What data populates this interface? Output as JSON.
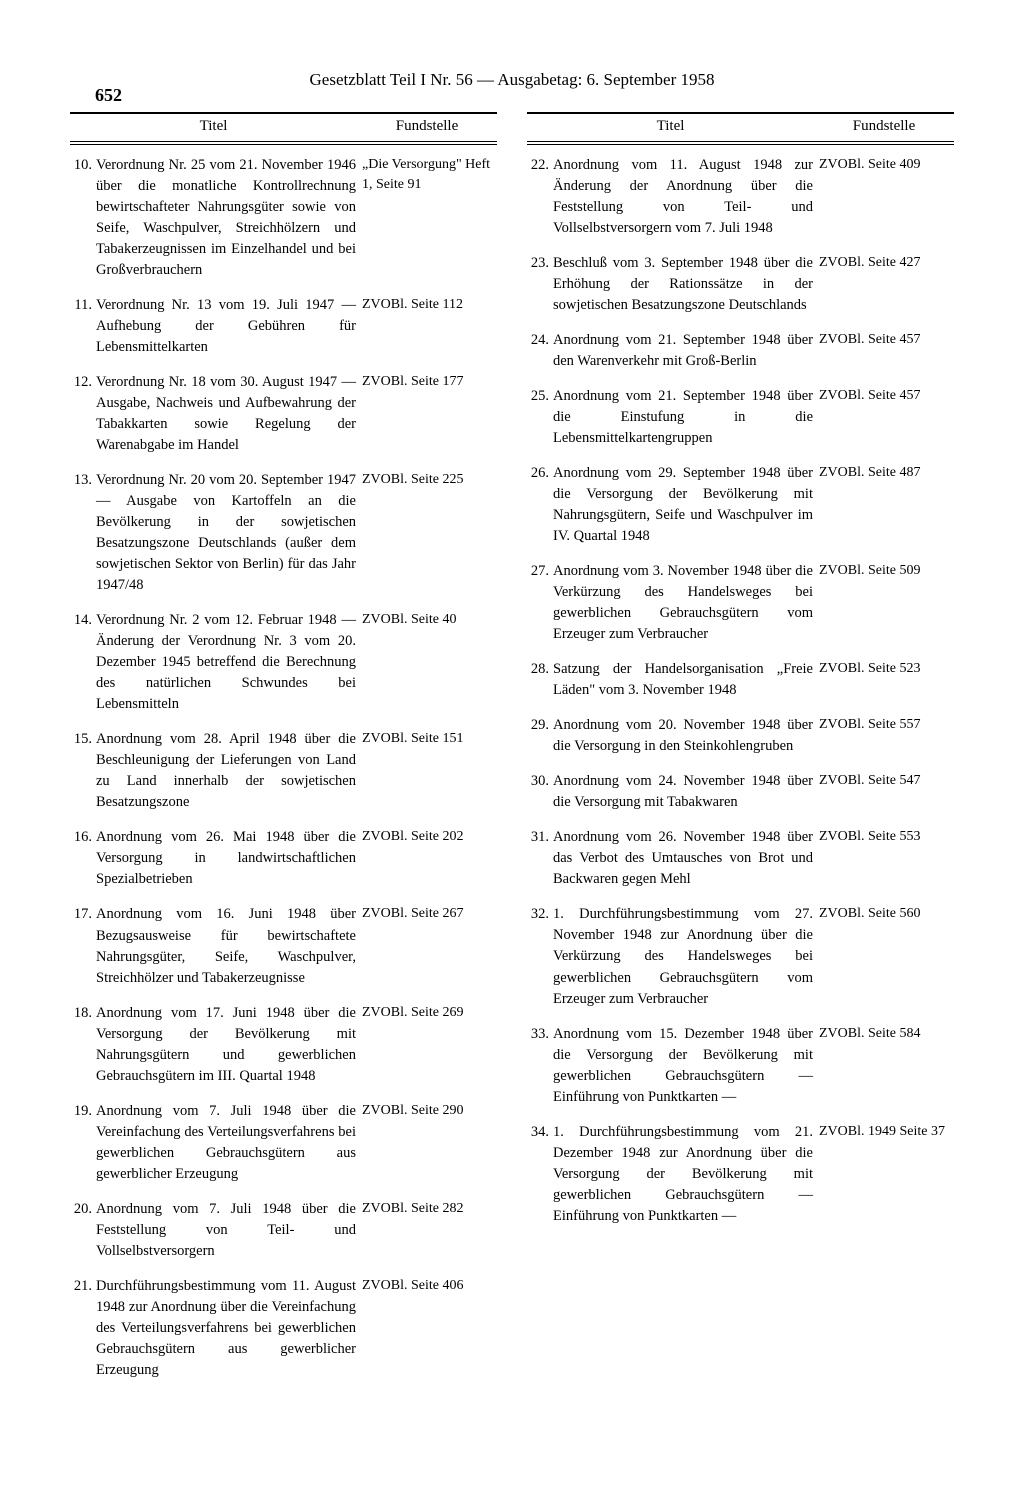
{
  "page_number": "652",
  "header": "Gesetzblatt Teil I Nr. 56 — Ausgabetag: 6. September 1958",
  "col_header_title": "Titel",
  "col_header_fund": "Fundstelle",
  "left": [
    {
      "n": "10.",
      "t": "Verordnung Nr. 25 vom 21. November 1946 über die monatliche Kontrollrechnung bewirtschafteter Nahrungsgüter sowie von Seife, Waschpulver, Streichhölzern und Tabakerzeugnissen im Einzelhandel und bei Großverbrauchern",
      "f": "„Die Versorgung\" Heft 1, Seite 91"
    },
    {
      "n": "11.",
      "t": "Verordnung Nr. 13 vom 19. Juli 1947 — Aufhebung der Gebühren für Lebensmittelkarten",
      "f": "ZVOBl. Seite 112"
    },
    {
      "n": "12.",
      "t": "Verordnung Nr. 18 vom 30. August 1947 — Ausgabe, Nachweis und Aufbewahrung der Tabakkarten sowie Regelung der Warenabgabe im Handel",
      "f": "ZVOBl. Seite 177"
    },
    {
      "n": "13.",
      "t": "Verordnung Nr. 20 vom 20. September 1947 — Ausgabe von Kartoffeln an die Bevölkerung in der sowjetischen Besatzungszone Deutschlands (außer dem sowjetischen Sektor von Berlin) für das Jahr 1947/48",
      "f": "ZVOBl. Seite 225"
    },
    {
      "n": "14.",
      "t": "Verordnung Nr. 2 vom 12. Februar 1948 — Änderung der Verordnung Nr. 3 vom 20. Dezember 1945 betreffend die Berechnung des natürlichen Schwundes bei Lebensmitteln",
      "f": "ZVOBl. Seite 40"
    },
    {
      "n": "15.",
      "t": "Anordnung vom 28. April 1948 über die Beschleunigung der Lieferungen von Land zu Land innerhalb der sowjetischen Besatzungszone",
      "f": "ZVOBl. Seite 151"
    },
    {
      "n": "16.",
      "t": "Anordnung vom 26. Mai 1948 über die Versorgung in landwirtschaftlichen Spezialbetrieben",
      "f": "ZVOBl. Seite 202"
    },
    {
      "n": "17.",
      "t": "Anordnung vom 16. Juni 1948 über Bezugsausweise für bewirtschaftete Nahrungsgüter, Seife, Waschpulver, Streichhölzer und Tabakerzeugnisse",
      "f": "ZVOBl. Seite 267"
    },
    {
      "n": "18.",
      "t": "Anordnung vom 17. Juni 1948 über die Versorgung der Bevölkerung mit Nahrungsgütern und gewerblichen Gebrauchsgütern im III. Quartal 1948",
      "f": "ZVOBl. Seite 269"
    },
    {
      "n": "19.",
      "t": "Anordnung vom 7. Juli 1948 über die Vereinfachung des Verteilungsverfahrens bei gewerblichen Gebrauchsgütern aus gewerblicher Erzeugung",
      "f": "ZVOBl. Seite 290"
    },
    {
      "n": "20.",
      "t": "Anordnung vom 7. Juli 1948 über die Feststellung von Teil- und Vollselbstversorgern",
      "f": "ZVOBl. Seite 282"
    },
    {
      "n": "21.",
      "t": "Durchführungsbestimmung vom 11. August 1948 zur Anordnung über die Vereinfachung des Verteilungsverfahrens bei gewerblichen Gebrauchsgütern aus gewerblicher Erzeugung",
      "f": "ZVOBl. Seite 406"
    }
  ],
  "right": [
    {
      "n": "22.",
      "t": "Anordnung vom 11. August 1948 zur Änderung der Anordnung über die Feststellung von Teil- und Vollselbstversorgern vom 7. Juli 1948",
      "f": "ZVOBl. Seite 409"
    },
    {
      "n": "23.",
      "t": "Beschluß vom 3. September 1948 über die Erhöhung der Rationssätze in der sowjetischen Besatzungszone Deutschlands",
      "f": "ZVOBl. Seite 427"
    },
    {
      "n": "24.",
      "t": "Anordnung vom 21. September 1948 über den Warenverkehr mit Groß-Berlin",
      "f": "ZVOBl. Seite 457"
    },
    {
      "n": "25.",
      "t": "Anordnung vom 21. September 1948 über die Einstufung in die Lebensmittelkartengruppen",
      "f": "ZVOBl. Seite 457"
    },
    {
      "n": "26.",
      "t": "Anordnung vom 29. September 1948 über die Versorgung der Bevölkerung mit Nahrungsgütern, Seife und Waschpulver im IV. Quartal 1948",
      "f": "ZVOBl. Seite 487"
    },
    {
      "n": "27.",
      "t": "Anordnung vom 3. November 1948 über die Verkürzung des Handelsweges bei gewerblichen Gebrauchsgütern vom Erzeuger zum Verbraucher",
      "f": "ZVOBl. Seite 509"
    },
    {
      "n": "28.",
      "t": "Satzung der Handelsorganisation „Freie Läden\" vom 3. November 1948",
      "f": "ZVOBl. Seite 523"
    },
    {
      "n": "29.",
      "t": "Anordnung vom 20. November 1948 über die Versorgung in den Steinkohlengruben",
      "f": "ZVOBl. Seite 557"
    },
    {
      "n": "30.",
      "t": "Anordnung vom 24. November 1948 über die Versorgung mit Tabakwaren",
      "f": "ZVOBl. Seite 547"
    },
    {
      "n": "31.",
      "t": "Anordnung vom 26. November 1948 über das Verbot des Umtausches von Brot und Backwaren gegen Mehl",
      "f": "ZVOBl. Seite 553"
    },
    {
      "n": "32.",
      "t": "1. Durchführungsbestimmung vom 27. November 1948 zur Anordnung über die Verkürzung des Handelsweges bei gewerblichen Gebrauchsgütern vom Erzeuger zum Verbraucher",
      "f": "ZVOBl. Seite 560"
    },
    {
      "n": "33.",
      "t": "Anordnung vom 15. Dezember 1948 über die Versorgung der Bevölkerung mit gewerblichen Gebrauchsgütern — Einführung von Punktkarten —",
      "f": "ZVOBl. Seite 584"
    },
    {
      "n": "34.",
      "t": "1. Durchführungsbestimmung vom 21. Dezember 1948 zur Anordnung über die Versorgung der Bevölkerung mit gewerblichen Gebrauchsgütern — Einführung von Punktkarten —",
      "f": "ZVOBl. 1949 Seite 37"
    }
  ]
}
